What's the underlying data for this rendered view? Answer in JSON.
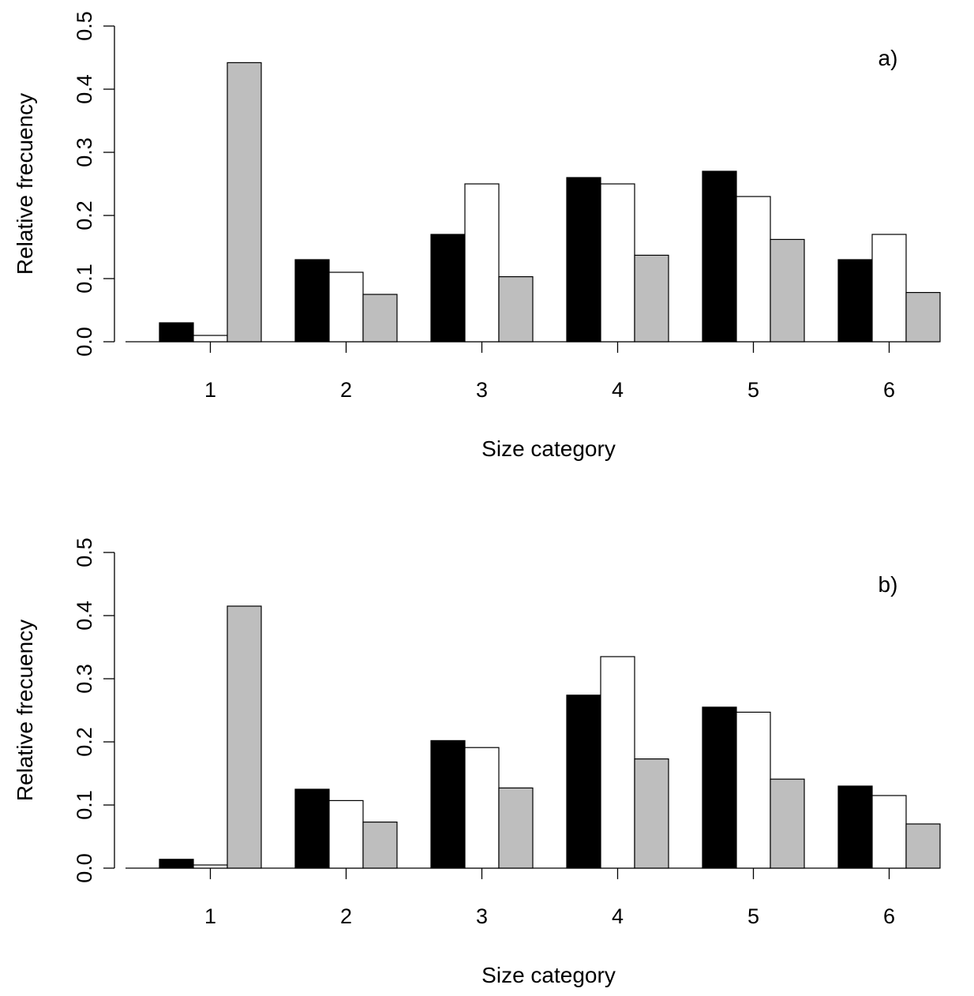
{
  "chart_data": [
    {
      "type": "bar",
      "panel_label": "a)",
      "xlabel": "Size category",
      "ylabel": "Relative frecuency",
      "categories": [
        "1",
        "2",
        "3",
        "4",
        "5",
        "6"
      ],
      "ylim": [
        0,
        0.5
      ],
      "yticks": [
        "0.0",
        "0.1",
        "0.2",
        "0.3",
        "0.4",
        "0.5"
      ],
      "grid": false,
      "series": [
        {
          "color": "#000000",
          "values": [
            0.03,
            0.13,
            0.17,
            0.26,
            0.27,
            0.13
          ]
        },
        {
          "color": "#ffffff",
          "values": [
            0.01,
            0.11,
            0.25,
            0.25,
            0.23,
            0.17
          ]
        },
        {
          "color": "#bebebe",
          "values": [
            0.442,
            0.075,
            0.103,
            0.137,
            0.162,
            0.078
          ]
        }
      ]
    },
    {
      "type": "bar",
      "panel_label": "b)",
      "xlabel": "Size category",
      "ylabel": "Relative frecuency",
      "categories": [
        "1",
        "2",
        "3",
        "4",
        "5",
        "6"
      ],
      "ylim": [
        0,
        0.5
      ],
      "yticks": [
        "0.0",
        "0.1",
        "0.2",
        "0.3",
        "0.4",
        "0.5"
      ],
      "grid": false,
      "series": [
        {
          "color": "#000000",
          "values": [
            0.014,
            0.125,
            0.202,
            0.274,
            0.255,
            0.13
          ]
        },
        {
          "color": "#ffffff",
          "values": [
            0.005,
            0.107,
            0.191,
            0.335,
            0.247,
            0.115
          ]
        },
        {
          "color": "#bebebe",
          "values": [
            0.415,
            0.073,
            0.127,
            0.173,
            0.141,
            0.07
          ]
        }
      ]
    }
  ]
}
